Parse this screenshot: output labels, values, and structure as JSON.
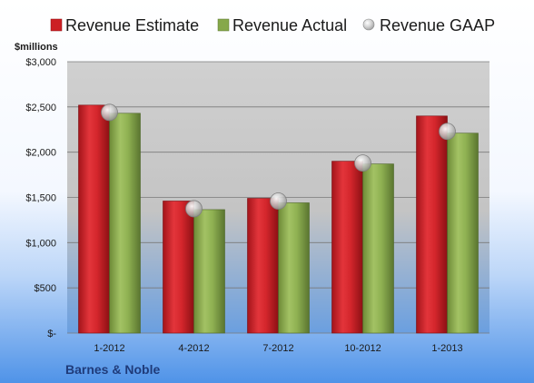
{
  "chart_data": {
    "type": "bar",
    "categories": [
      "1-2012",
      "4-2012",
      "7-2012",
      "10-2012",
      "1-2013"
    ],
    "series": [
      {
        "name": "Revenue Estimate",
        "values": [
          2520,
          1460,
          1490,
          1900,
          2400
        ],
        "color": "#cc1f24",
        "kind": "bar"
      },
      {
        "name": "Revenue Actual",
        "values": [
          2430,
          1365,
          1440,
          1870,
          2210
        ],
        "color": "#86a84a",
        "kind": "bar"
      },
      {
        "name": "Revenue GAAP",
        "values": [
          2440,
          1375,
          1460,
          1880,
          2230
        ],
        "color": "#b8b8b8",
        "kind": "marker"
      }
    ],
    "ylim": [
      0,
      3000
    ],
    "yticks": [
      0,
      500,
      1000,
      1500,
      2000,
      2500,
      3000
    ],
    "ytick_labels": [
      "$-",
      "$500",
      "$1,000",
      "$1,500",
      "$2,000",
      "$2,500",
      "$3,000"
    ],
    "unit_label": "$millions",
    "company": "Barnes & Noble",
    "grid": true,
    "legend_position": "top"
  }
}
